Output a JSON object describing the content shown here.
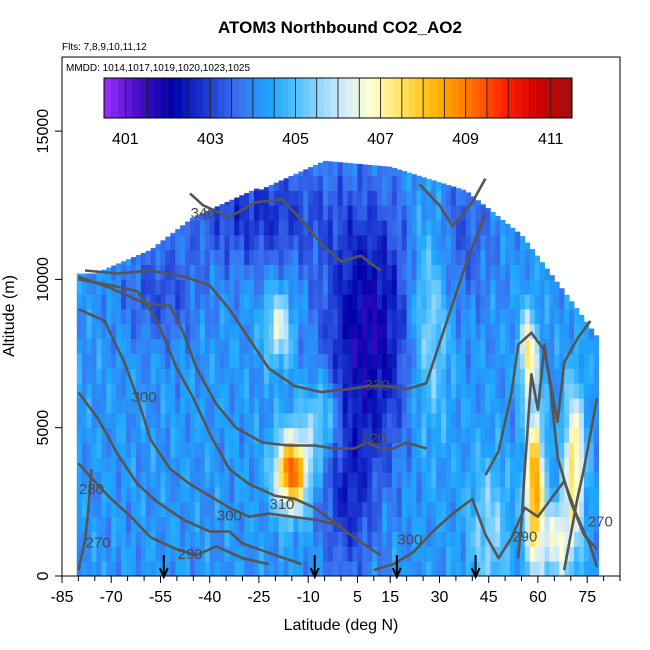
{
  "chart_data": {
    "type": "heatmap",
    "title": "ATOM3 Northbound CO2_AO2",
    "subtitle": "Flts: 7,8,9,10,11,12",
    "annotation": "MMDD: 1014,1017,1019,1020,1023,1025",
    "xlabel": "Latitude (deg N)",
    "ylabel": "Altitude (m)",
    "xlim": [
      -85,
      85
    ],
    "ylim": [
      0,
      17500
    ],
    "x_ticks": [
      -85,
      -70,
      -55,
      -40,
      -25,
      -10,
      5,
      15,
      30,
      45,
      60,
      75
    ],
    "y_ticks": [
      0,
      5000,
      10000,
      15000
    ],
    "colorbar": {
      "range": [
        400.5,
        411.5
      ],
      "ticks": [
        401,
        403,
        405,
        407,
        409,
        411
      ],
      "colors": [
        "#9b30ff",
        "#4a10c8",
        "#0000a8",
        "#1a35d0",
        "#3a70f0",
        "#1ea8ff",
        "#66c8ff",
        "#c8e8ff",
        "#ffffd0",
        "#ffe055",
        "#ffb000",
        "#ff7000",
        "#ff2000",
        "#d00000",
        "#a01010"
      ]
    },
    "grid": false,
    "contour_labels": [
      {
        "label": "340",
        "lat": -42,
        "alt": 12200
      },
      {
        "label": "330",
        "lat": 11,
        "alt": 6400
      },
      {
        "label": "320",
        "lat": 10,
        "alt": 4600
      },
      {
        "label": "310",
        "lat": -18,
        "alt": 2400
      },
      {
        "label": "300",
        "lat": -60,
        "alt": 6000
      },
      {
        "label": "300",
        "lat": -34,
        "alt": 2000
      },
      {
        "label": "300",
        "lat": 21,
        "alt": 1200
      },
      {
        "label": "290",
        "lat": -46,
        "alt": 700
      },
      {
        "label": "290",
        "lat": 56,
        "alt": 1300
      },
      {
        "label": "280",
        "lat": -76,
        "alt": 2900
      },
      {
        "label": "270",
        "lat": -74,
        "alt": 1100
      },
      {
        "label": "270",
        "lat": 79,
        "alt": 1800
      }
    ],
    "flight_arrows_lat": [
      -54,
      -8,
      17,
      41
    ]
  }
}
